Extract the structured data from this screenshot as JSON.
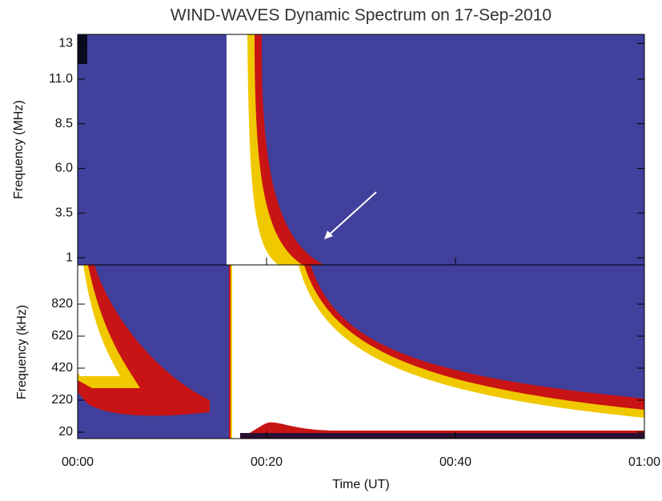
{
  "chart_data": [
    {
      "type": "spectrogram",
      "title": "WIND-WAVES Dynamic Spectrum on 17-Sep-2010",
      "ylabel": "Frequency (MHz)",
      "xlim": [
        0,
        60
      ],
      "ylim": [
        0.6,
        13.5
      ],
      "yticks": [
        1,
        {
          "value": 3.5,
          "label": "3.5"
        },
        {
          "value": 6,
          "label": "6.0"
        },
        {
          "value": 8.5,
          "label": "8.5"
        },
        {
          "value": 11,
          "label": "11.0"
        },
        13
      ]
    },
    {
      "type": "spectrogram",
      "ylabel": "Frequency (kHz)",
      "xlabel": "Time (UT)",
      "xlim": [
        0,
        60
      ],
      "ylim": [
        -20,
        1065
      ],
      "xticks": [
        {
          "value": 0,
          "label": "00:00"
        },
        {
          "value": 20,
          "label": "00:20"
        },
        {
          "value": 40,
          "label": "00:40"
        },
        {
          "value": 60,
          "label": "01:00"
        }
      ],
      "yticks": [
        20,
        220,
        420,
        620,
        820
      ]
    }
  ]
}
